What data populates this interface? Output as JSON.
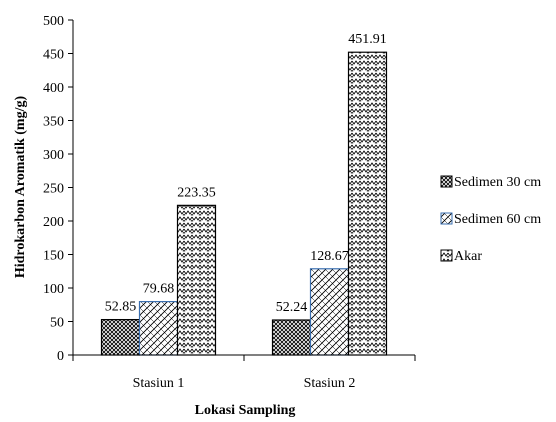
{
  "chart_data": {
    "type": "bar",
    "categories": [
      "Stasiun 1",
      "Stasiun 2"
    ],
    "series": [
      {
        "name": "Sedimen 30 cm",
        "values": [
          52.85,
          52.24
        ],
        "pattern": "crosshatch",
        "stroke": "#000000"
      },
      {
        "name": "Sedimen 60 cm",
        "values": [
          79.68,
          128.67
        ],
        "pattern": "diag",
        "stroke": "#3a6fb0"
      },
      {
        "name": "Akar",
        "values": [
          223.35,
          451.91
        ],
        "pattern": "zigzag",
        "stroke": "#000000"
      }
    ],
    "data_labels": [
      [
        "52.85",
        "52.24"
      ],
      [
        "79.68",
        "128.67"
      ],
      [
        "223.35",
        "451.91"
      ]
    ],
    "xlabel": "Lokasi Sampling",
    "ylabel": "Hidrokarbon Aromatik (mg/g)",
    "ylim": [
      0,
      500
    ],
    "yticks": [
      0,
      50,
      100,
      150,
      200,
      250,
      300,
      350,
      400,
      450,
      500
    ],
    "grid": false,
    "legend_position": "right"
  }
}
